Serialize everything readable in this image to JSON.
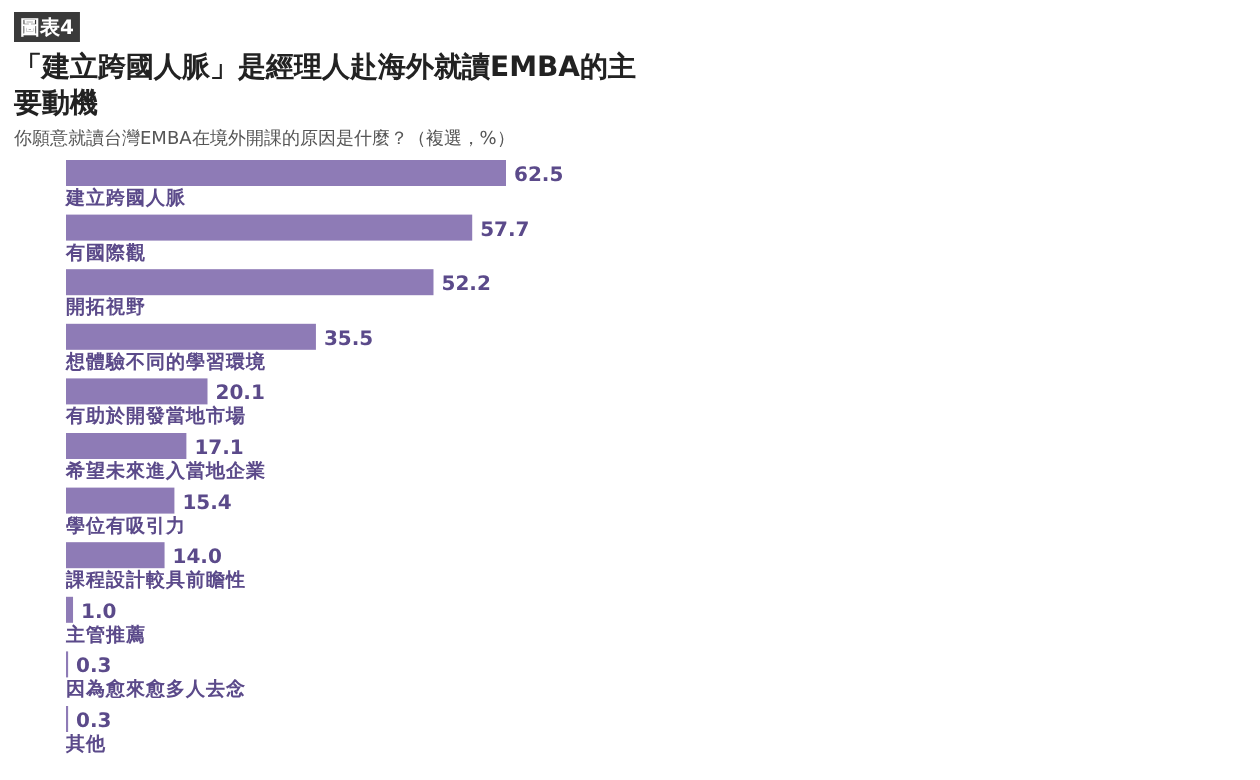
{
  "chart_data": {
    "type": "bar",
    "orientation": "horizontal",
    "title": "「建立跨國人脈」是經理人赴海外就讀EMBA的主要動機",
    "subtitle": "你願意就讀台灣EMBA在境外開課的原因是什麼？（複選，%）",
    "annotations": [
      "圖表4"
    ],
    "categories": [
      "建立跨國人脈",
      "有國際觀",
      "開拓視野",
      "想體驗不同的學習環境",
      "有助於開發當地市場",
      "希望未來進入當地企業",
      "學位有吸引力",
      "課程設計較具前瞻性",
      "主管推薦",
      "因為愈來愈多人去念",
      "其他"
    ],
    "values": [
      62.5,
      57.7,
      52.2,
      35.5,
      20.1,
      17.1,
      15.4,
      14.0,
      1.0,
      0.3,
      0.3
    ],
    "value_labels": [
      "62.5",
      "57.7",
      "52.2",
      "35.5",
      "20.1",
      "17.1",
      "15.4",
      "14.0",
      "1.0",
      "0.3",
      "0.3"
    ],
    "data_labels": true,
    "color": "#8e7bb6"
  }
}
